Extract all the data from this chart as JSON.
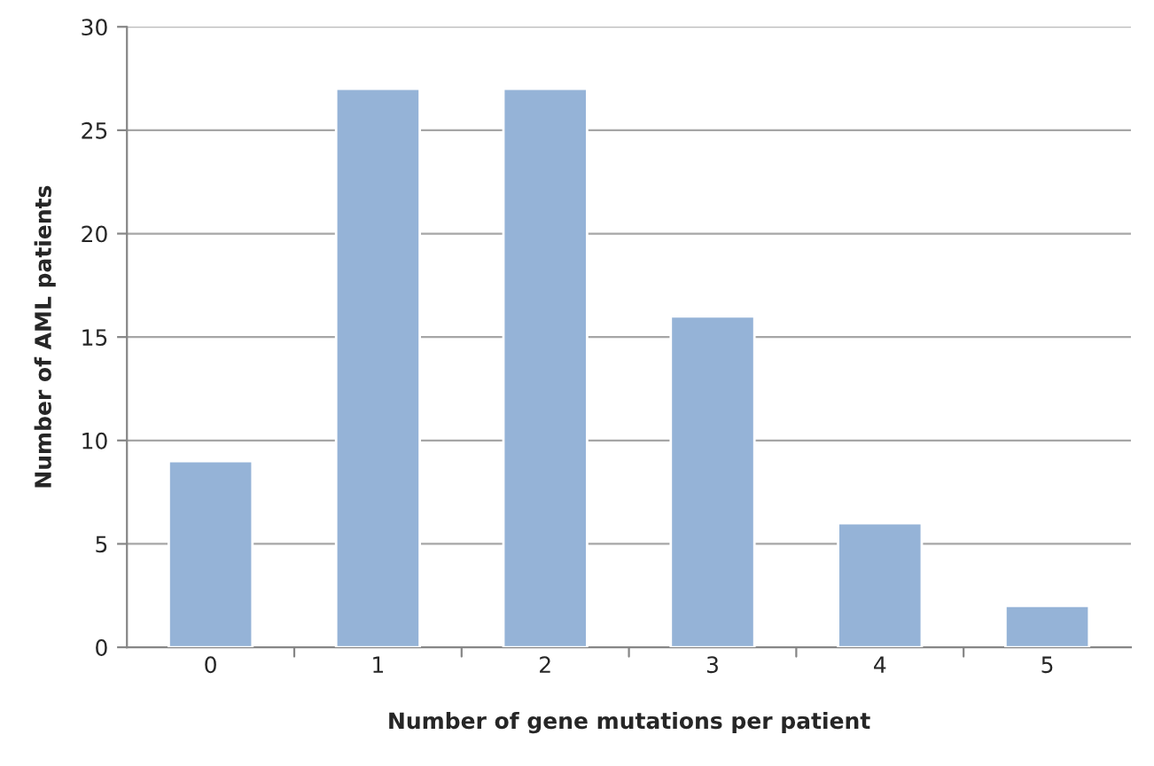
{
  "chart_data": {
    "type": "bar",
    "xlabel": "Number of gene mutations per patient",
    "ylabel": "Number of AML patients",
    "categories": [
      "0",
      "1",
      "2",
      "3",
      "4",
      "5"
    ],
    "series": [
      {
        "color": "#95b3d7",
        "values": [
          9,
          27,
          27,
          16,
          6,
          2
        ]
      }
    ],
    "ylim": [
      0,
      30
    ],
    "yticks": [
      0,
      5,
      10,
      15,
      20,
      25,
      30
    ],
    "grid": "y",
    "legend": false
  }
}
